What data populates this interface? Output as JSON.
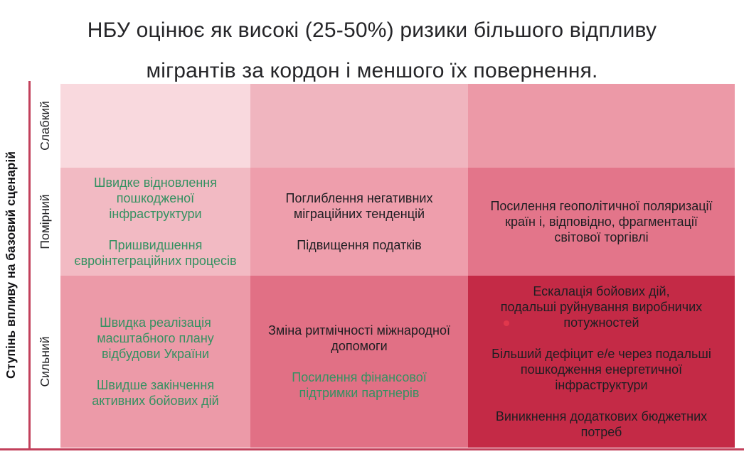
{
  "title": {
    "line1": "НБУ оцінює як високі (25-50%) ризики більшого відпливу",
    "line2": "мігрантів за кордон і меншого їх повернення.",
    "full": "НБУ оцінює як високі (25-50%) ризики більшого відпливу мігрантів за кордон і меншого їх повернення."
  },
  "y_axis": {
    "label": "Ступінь впливу на базовий сценарій",
    "categories": [
      "Слабкий",
      "Помірний",
      "Сильний"
    ]
  },
  "colors": {
    "axis_line": "#c2405b",
    "positive_text": "#349161",
    "negative_text": "#1e1e22",
    "accent_dot": "#e6394e",
    "cell_scale_lightest": "#f9d9de",
    "cell_scale_darkest": "#c42a46"
  },
  "chart_data": {
    "type": "heatmap",
    "title": "НБУ оцінює як високі (25-50%) ризики більшого відпливу мігрантів за кордон і меншого їх повернення.",
    "y_axis_label": "Ступінь впливу на базовий сценарій",
    "y_categories": [
      "Слабкий",
      "Помірний",
      "Сильний"
    ],
    "legend": "off",
    "cells": [
      {
        "row": 0,
        "col": 0,
        "impact": "Слабкий",
        "bg": "#f9d9de",
        "items": []
      },
      {
        "row": 0,
        "col": 1,
        "impact": "Слабкий",
        "bg": "#f0b5bf",
        "items": []
      },
      {
        "row": 0,
        "col": 2,
        "impact": "Слабкий",
        "bg": "#ec99a7",
        "items": []
      },
      {
        "row": 1,
        "col": 0,
        "impact": "Помірний",
        "bg": "#f2bac3",
        "items": [
          {
            "text": "Швидке відновлення\nпошкодженої\nінфраструктури",
            "tone": "positive"
          },
          {
            "text": "Пришвидшення\nєвроінтеграційних процесів",
            "tone": "positive"
          }
        ]
      },
      {
        "row": 1,
        "col": 1,
        "impact": "Помірний",
        "bg": "#ee9eac",
        "items": [
          {
            "text": "Поглиблення негативних\nміграційних тенденцій",
            "tone": "negative"
          },
          {
            "text": "Підвищення податків",
            "tone": "negative"
          }
        ]
      },
      {
        "row": 1,
        "col": 2,
        "impact": "Помірний",
        "bg": "#e3758a",
        "items": [
          {
            "text": "Посилення геополітичної поляризації\nкраїн і, відповідно, фрагментації\nсвітової торгівлі",
            "tone": "negative"
          }
        ]
      },
      {
        "row": 2,
        "col": 0,
        "impact": "Сильний",
        "bg": "#ec9aa8",
        "items": [
          {
            "text": "Швидка реалізація\nмасштабного плану\nвідбудови України",
            "tone": "positive"
          },
          {
            "text": "Швидше закінчення\nактивних бойових дій",
            "tone": "positive"
          }
        ]
      },
      {
        "row": 2,
        "col": 1,
        "impact": "Сильний",
        "bg": "#e17085",
        "items": [
          {
            "text": "Зміна ритмічності міжнародної\nдопомоги",
            "tone": "negative"
          },
          {
            "text": "Посилення фінансової\nпідтримки партнерів",
            "tone": "positive"
          }
        ]
      },
      {
        "row": 2,
        "col": 2,
        "impact": "Сильний",
        "bg": "#c42a46",
        "items": [
          {
            "text": "Ескалація бойових дій,\nподальші руйнування виробничих\nпотужностей",
            "tone": "negative"
          },
          {
            "text": "Більший дефіцит е/е через подальші\nпошкодження енергетичної\nінфраструктури",
            "tone": "negative"
          },
          {
            "text": "Виникнення додаткових бюджетних\nпотреб",
            "tone": "negative"
          }
        ]
      }
    ]
  }
}
